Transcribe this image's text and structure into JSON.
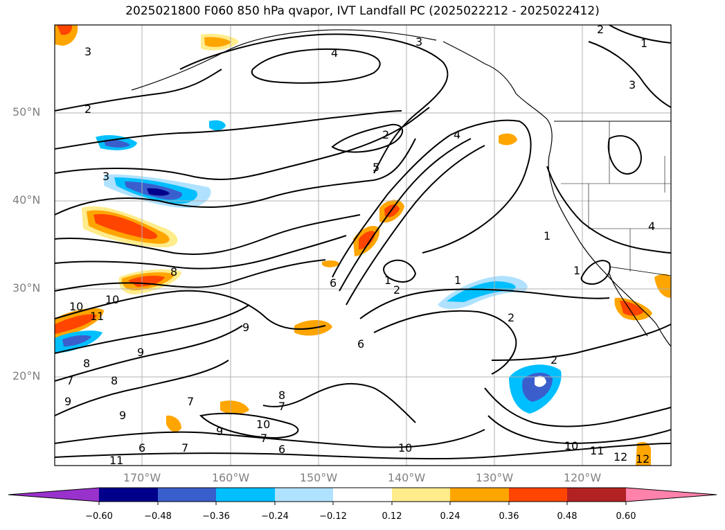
{
  "title": "2025021800 F060 850 hPa qvapor, IVT Landfall PC (2025022212 - 2025022412)",
  "map": {
    "lat_labels": [
      "50°N",
      "40°N",
      "30°N",
      "20°N"
    ],
    "lon_labels": [
      "170°W",
      "160°W",
      "150°W",
      "140°W",
      "130°W",
      "120°W"
    ],
    "contour_labels": [
      "3",
      "4",
      "3",
      "2",
      "1",
      "3",
      "2",
      "2",
      "4",
      "5",
      "3",
      "1",
      "4",
      "1",
      "8",
      "10",
      "11",
      "10",
      "9",
      "8",
      "6",
      "1",
      "2",
      "1",
      "2",
      "6",
      "9",
      "8",
      "7",
      "9",
      "7",
      "9",
      "8",
      "7",
      "10",
      "7",
      "6",
      "10",
      "10",
      "11",
      "12",
      "12",
      "11",
      "9",
      "6",
      "7",
      "2"
    ],
    "grid": true,
    "projection": "lat-lon"
  },
  "colorbar": {
    "ticks": [
      "−0.60",
      "−0.48",
      "−0.36",
      "−0.24",
      "−0.12",
      "0.12",
      "0.24",
      "0.36",
      "0.48",
      "0.60"
    ],
    "colors": {
      "under": "#9932cc",
      "bins": [
        "#9932cc",
        "#00008b",
        "#3a5fcd",
        "#00bfff",
        "#b0e2ff",
        "#ffffff",
        "#ffec8b",
        "#ffa500",
        "#ff4500",
        "#b22222",
        "#ff82ab"
      ],
      "over": "#ff82ab"
    }
  },
  "shading_colors": {
    "neg_light": "#b0e2ff",
    "neg_mid": "#00bfff",
    "neg_strong": "#3a5fcd",
    "neg_max": "#00008b",
    "pos_light": "#ffec8b",
    "pos_mid": "#ffa500",
    "pos_strong": "#ff4500"
  }
}
